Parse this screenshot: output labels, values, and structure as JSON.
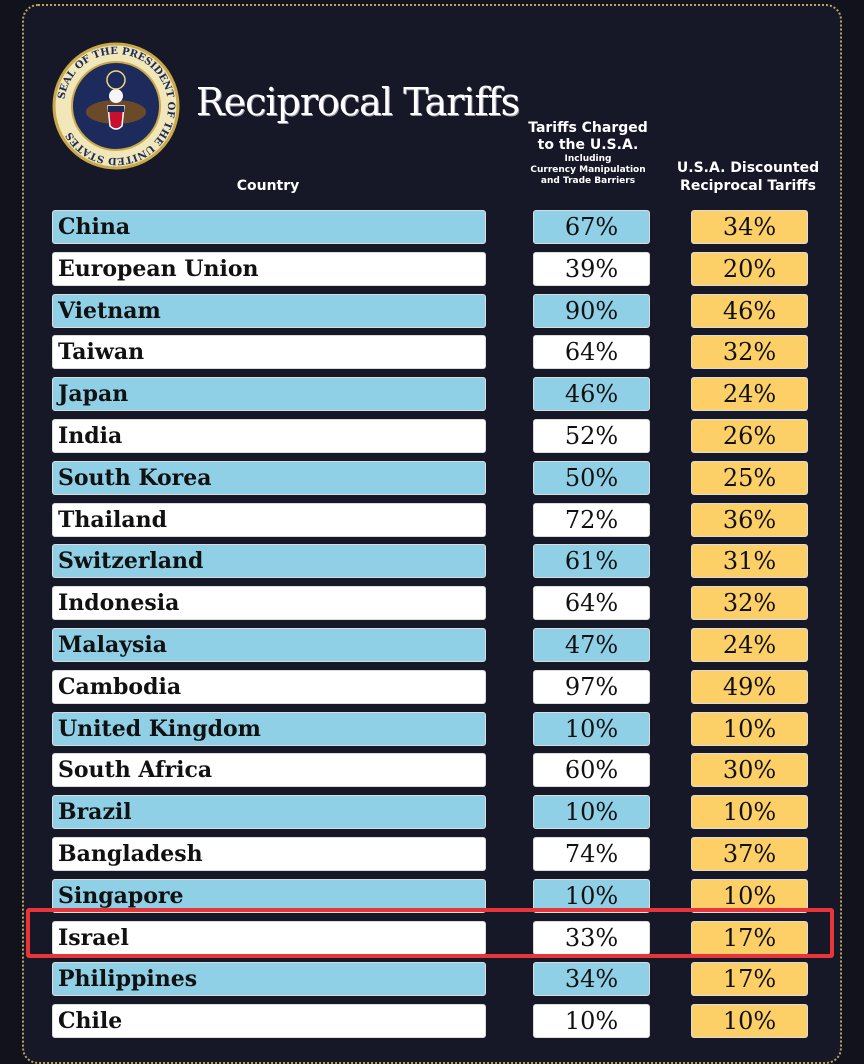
{
  "title": "Reciprocal Tariffs",
  "seal": {
    "text": "SEAL OF THE PRESIDENT OF THE UNITED STATES",
    "icon": "presidential-seal-icon"
  },
  "headers": {
    "country": "Country",
    "charged_line1": "Tariffs Charged",
    "charged_line2": "to the U.S.A.",
    "charged_sub1": "Including",
    "charged_sub2": "Currency Manipulation",
    "charged_sub3": "and Trade Barriers",
    "discounted_line1": "U.S.A. Discounted",
    "discounted_line2": "Reciprocal Tariffs"
  },
  "rows": [
    {
      "country": "China",
      "charged": "67%",
      "discounted": "34%"
    },
    {
      "country": "European Union",
      "charged": "39%",
      "discounted": "20%"
    },
    {
      "country": "Vietnam",
      "charged": "90%",
      "discounted": "46%"
    },
    {
      "country": "Taiwan",
      "charged": "64%",
      "discounted": "32%"
    },
    {
      "country": "Japan",
      "charged": "46%",
      "discounted": "24%"
    },
    {
      "country": "India",
      "charged": "52%",
      "discounted": "26%"
    },
    {
      "country": "South Korea",
      "charged": "50%",
      "discounted": "25%"
    },
    {
      "country": "Thailand",
      "charged": "72%",
      "discounted": "36%"
    },
    {
      "country": "Switzerland",
      "charged": "61%",
      "discounted": "31%"
    },
    {
      "country": "Indonesia",
      "charged": "64%",
      "discounted": "32%"
    },
    {
      "country": "Malaysia",
      "charged": "47%",
      "discounted": "24%"
    },
    {
      "country": "Cambodia",
      "charged": "97%",
      "discounted": "49%"
    },
    {
      "country": "United Kingdom",
      "charged": "10%",
      "discounted": "10%"
    },
    {
      "country": "South Africa",
      "charged": "60%",
      "discounted": "30%"
    },
    {
      "country": "Brazil",
      "charged": "10%",
      "discounted": "10%"
    },
    {
      "country": "Bangladesh",
      "charged": "74%",
      "discounted": "37%"
    },
    {
      "country": "Singapore",
      "charged": "10%",
      "discounted": "10%"
    },
    {
      "country": "Israel",
      "charged": "33%",
      "discounted": "17%"
    },
    {
      "country": "Philippines",
      "charged": "34%",
      "discounted": "17%"
    },
    {
      "country": "Chile",
      "charged": "10%",
      "discounted": "10%"
    }
  ],
  "highlighted_country": "Israel",
  "colors": {
    "background": "#161727",
    "row_blue": "#8fd0e6",
    "row_white": "#ffffff",
    "discount_gold": "#fcd067",
    "highlight_red": "#e8353a"
  }
}
